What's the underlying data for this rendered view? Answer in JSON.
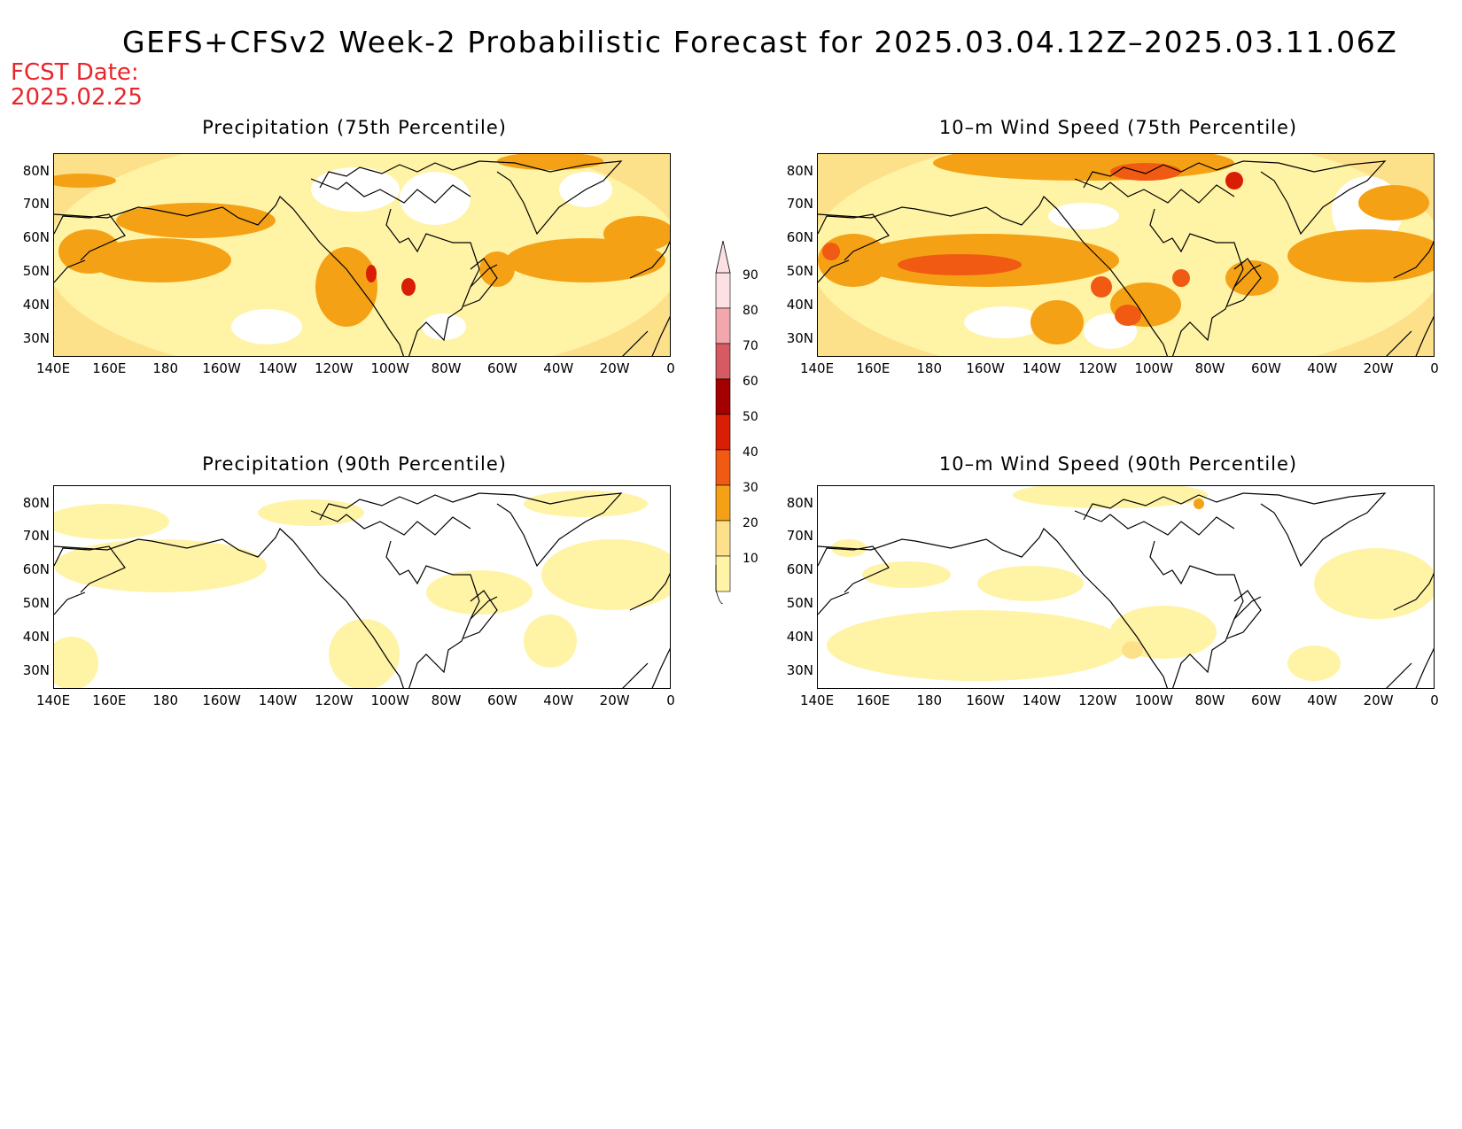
{
  "title": "GEFS+CFSv2 Week-2 Probabilistic Forecast for 2025.03.04.12Z–2025.03.11.06Z",
  "fcst_date_label": "FCST Date:",
  "fcst_date_value": "2025.02.25",
  "colors": {
    "fcst_text": "#e8252a",
    "levels": [
      "#ffffff",
      "#fff3a6",
      "#fde08a",
      "#f5a116",
      "#f05a12",
      "#d81e05",
      "#a50000",
      "#d65a62",
      "#f1a7ac",
      "#fde0e3"
    ]
  },
  "panels": [
    {
      "id": "precip-75",
      "title": "Precipitation (75th Percentile)"
    },
    {
      "id": "wind-75",
      "title": "10–m Wind Speed (75th Percentile)"
    },
    {
      "id": "precip-90",
      "title": "Precipitation (90th Percentile)"
    },
    {
      "id": "wind-90",
      "title": "10–m Wind Speed (90th Percentile)"
    }
  ],
  "lat_labels": [
    "80N",
    "70N",
    "60N",
    "50N",
    "40N",
    "30N"
  ],
  "lon_labels": [
    "140E",
    "160E",
    "180",
    "160W",
    "140W",
    "120W",
    "100W",
    "80W",
    "60W",
    "40W",
    "20W",
    "0"
  ],
  "colorbar": {
    "labels": [
      "90",
      "80",
      "70",
      "60",
      "50",
      "40",
      "30",
      "20",
      "10"
    ]
  }
}
